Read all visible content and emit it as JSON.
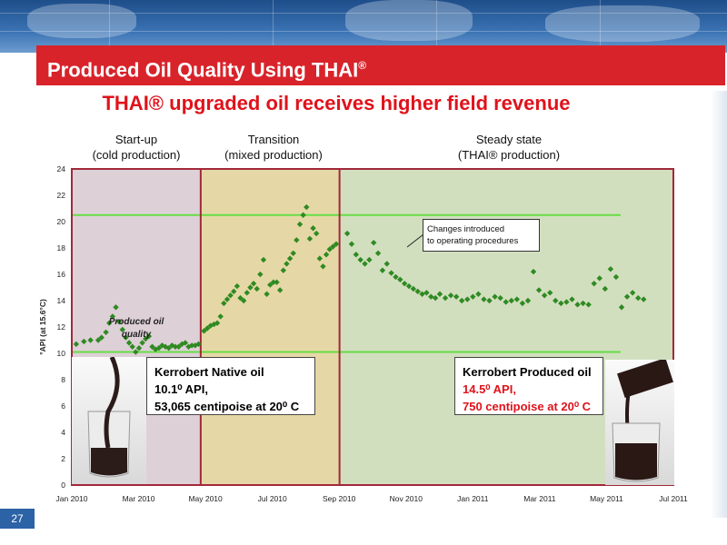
{
  "slide": {
    "title": "Produced Oil Quality Using THAI",
    "title_reg": "®",
    "subtitle": "THAI® upgraded oil receives higher field revenue",
    "page_number": "27"
  },
  "phases": [
    {
      "line1": "Start-up",
      "line2": "(cold production)"
    },
    {
      "line1": "Transition",
      "line2": "(mixed production)"
    },
    {
      "line1": "Steady state",
      "line2": "(THAI® production)"
    }
  ],
  "boxes": {
    "native": {
      "line1": "Kerrobert Native oil",
      "line2": "10.1⁰ API,",
      "line3": "53,065 centipoise at 20⁰ C"
    },
    "produced": {
      "line1": "Kerrobert Produced oil",
      "line2": "14.5⁰ API,",
      "line3": "750 centipoise at 20⁰ C"
    }
  },
  "annotations": {
    "changes_line1": "Changes introduced",
    "changes_line2": "to operating procedures",
    "quality_line1": "Produced oil",
    "quality_line2": "quality"
  },
  "colors": {
    "title_red": "#d8232a",
    "phase1_bg": "#ded0d7",
    "phase2_bg": "#e6d8a6",
    "phase3_bg": "#d2dfbf",
    "divider": "#a2283a",
    "points": "#2f8a22",
    "ref_line": "#66dd44"
  },
  "chart_data": {
    "type": "scatter",
    "xlabel": "",
    "ylabel": "°API (at 15.6°C)",
    "ylim": [
      0,
      24
    ],
    "yticks": [
      "0",
      "2",
      "4",
      "6",
      "8",
      "10",
      "12",
      "14",
      "16",
      "18",
      "20",
      "22",
      "24"
    ],
    "x_ticks": [
      "Jan 2010",
      "Mar 2010",
      "May 2010",
      "Jul 2010",
      "Sep 2010",
      "Nov 2010",
      "Jan 2011",
      "Mar 2011",
      "May 2011",
      "Jul 2011"
    ],
    "xlim": [
      "2010-01-01",
      "2011-07-01"
    ],
    "reference_lines": [
      10.1,
      20.5
    ],
    "phase_boundaries": [
      "2010-04-28",
      "2010-09-01"
    ],
    "series": [
      {
        "x": [
          "2010-01-05",
          "2010-01-12",
          "2010-01-18",
          "2010-01-25",
          "2010-01-28",
          "2010-02-01",
          "2010-02-04",
          "2010-02-07",
          "2010-02-10",
          "2010-02-13",
          "2010-02-16",
          "2010-02-19",
          "2010-02-22",
          "2010-02-25",
          "2010-02-28",
          "2010-03-03",
          "2010-03-06",
          "2010-03-09",
          "2010-03-12",
          "2010-03-15",
          "2010-03-18",
          "2010-03-21",
          "2010-03-24",
          "2010-03-27",
          "2010-03-30",
          "2010-04-02",
          "2010-04-05",
          "2010-04-08",
          "2010-04-11",
          "2010-04-14",
          "2010-04-17",
          "2010-04-20",
          "2010-04-23",
          "2010-04-26"
        ],
        "values": [
          10.7,
          10.9,
          11,
          11,
          11.2,
          11.6,
          12.3,
          12.8,
          13.5,
          12.4,
          11.8,
          11.2,
          10.8,
          10.5,
          10.1,
          10.4,
          10.8,
          11.1,
          11.3,
          10.5,
          10.3,
          10.4,
          10.6,
          10.5,
          10.4,
          10.6,
          10.5,
          10.5,
          10.7,
          10.8,
          10.5,
          10.6,
          10.6,
          10.7
        ]
      },
      {
        "x": [
          "2010-05-01",
          "2010-05-04",
          "2010-05-07",
          "2010-05-10",
          "2010-05-13",
          "2010-05-16",
          "2010-05-19",
          "2010-05-22",
          "2010-05-25",
          "2010-05-28",
          "2010-05-31",
          "2010-06-03",
          "2010-06-06",
          "2010-06-09",
          "2010-06-12",
          "2010-06-15",
          "2010-06-18",
          "2010-06-21",
          "2010-06-24",
          "2010-06-27",
          "2010-06-30",
          "2010-07-03",
          "2010-07-06",
          "2010-07-09",
          "2010-07-12",
          "2010-07-15",
          "2010-07-18",
          "2010-07-21",
          "2010-07-24",
          "2010-07-27",
          "2010-07-30",
          "2010-08-02",
          "2010-08-05",
          "2010-08-08",
          "2010-08-11",
          "2010-08-14",
          "2010-08-17",
          "2010-08-20",
          "2010-08-23",
          "2010-08-26",
          "2010-08-29"
        ],
        "values": [
          11.7,
          11.9,
          12.1,
          12.2,
          12.3,
          12.8,
          13.8,
          14.1,
          14.4,
          14.7,
          15.1,
          14.2,
          14,
          14.6,
          15,
          15.3,
          14.9,
          16,
          17.1,
          14.5,
          15.2,
          15.4,
          15.4,
          14.8,
          16.3,
          16.8,
          17.2,
          17.6,
          18.6,
          19.8,
          20.5,
          21.1,
          18.7,
          19.5,
          19.1,
          17.2,
          16.6,
          17.5,
          17.9,
          18.1,
          18.3
        ]
      },
      {
        "x": [
          "2010-09-08",
          "2010-09-12",
          "2010-09-16",
          "2010-09-20",
          "2010-09-24",
          "2010-09-28",
          "2010-10-02",
          "2010-10-06",
          "2010-10-10",
          "2010-10-14",
          "2010-10-18",
          "2010-10-22",
          "2010-10-26",
          "2010-10-30",
          "2010-11-03",
          "2010-11-07",
          "2010-11-11",
          "2010-11-15",
          "2010-11-19",
          "2010-11-23",
          "2010-11-27",
          "2010-12-01",
          "2010-12-06",
          "2010-12-11",
          "2010-12-16",
          "2010-12-21",
          "2010-12-26",
          "2010-12-31",
          "2011-01-05",
          "2011-01-10",
          "2011-01-15",
          "2011-01-20",
          "2011-01-25",
          "2011-01-30",
          "2011-02-04",
          "2011-02-09",
          "2011-02-14",
          "2011-02-19",
          "2011-02-24",
          "2011-03-01",
          "2011-03-06",
          "2011-03-11",
          "2011-03-16",
          "2011-03-21",
          "2011-03-26",
          "2011-03-31",
          "2011-04-05",
          "2011-04-10",
          "2011-04-15",
          "2011-04-20",
          "2011-04-25",
          "2011-04-30",
          "2011-05-05",
          "2011-05-10",
          "2011-05-15",
          "2011-05-20",
          "2011-05-25",
          "2011-05-30",
          "2011-06-04"
        ],
        "values": [
          19.1,
          18.3,
          17.5,
          17.1,
          16.8,
          17.1,
          18.4,
          17.6,
          16.3,
          16.8,
          16.1,
          15.8,
          15.6,
          15.3,
          15.1,
          14.9,
          14.7,
          14.5,
          14.6,
          14.3,
          14.2,
          14.5,
          14.2,
          14.4,
          14.3,
          14,
          14.1,
          14.3,
          14.5,
          14.1,
          14,
          14.3,
          14.2,
          13.9,
          14,
          14.1,
          13.8,
          14,
          16.2,
          14.8,
          14.4,
          14.6,
          14,
          13.8,
          13.9,
          14.1,
          13.7,
          13.8,
          13.7,
          15.3,
          15.7,
          14.9,
          16.4,
          15.8,
          13.5,
          14.3,
          14.6,
          14.2,
          14.1
        ]
      }
    ]
  }
}
